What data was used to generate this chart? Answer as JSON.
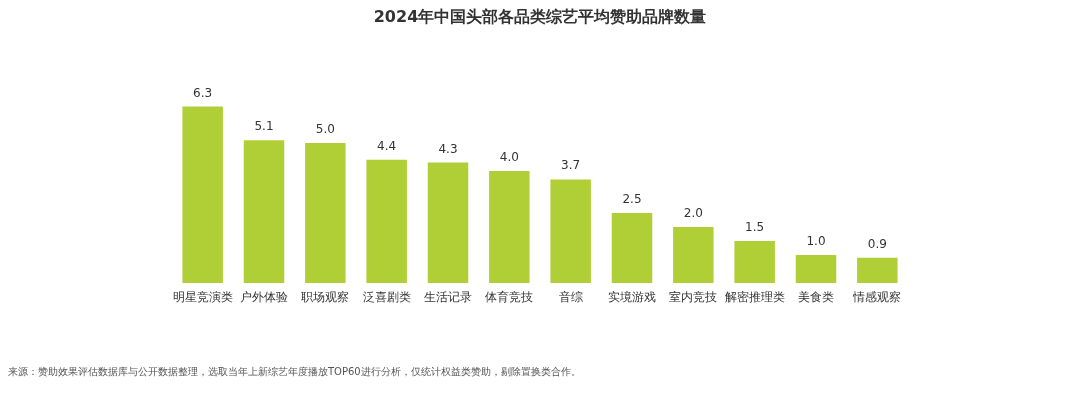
{
  "chart_data": {
    "type": "bar",
    "title": "2024年中国头部各品类综艺平均赞助品牌数量",
    "categories": [
      "明星竞演类",
      "户外体验",
      "职场观察",
      "泛喜剧类",
      "生活记录",
      "体育竞技",
      "音综",
      "实境游戏",
      "室内竞技",
      "解密推理类",
      "美食类",
      "情感观察"
    ],
    "values": [
      6.3,
      5.1,
      5.0,
      4.4,
      4.3,
      4.0,
      3.7,
      2.5,
      2.0,
      1.5,
      1.0,
      0.9
    ],
    "color": "#b0cf36",
    "value_labels": [
      "6.3",
      "5.1",
      "5.0",
      "4.4",
      "4.3",
      "4.0",
      "3.7",
      "2.5",
      "2.0",
      "1.5",
      "1.0",
      "0.9"
    ],
    "tick_labels": "x",
    "annotations": [
      "来源：赞助效果评估数据库与公开数据整理，选取当年上新综艺年度播放TOP60进行分析，仅统计权益类赞助，剔除置换类合作。"
    ]
  }
}
